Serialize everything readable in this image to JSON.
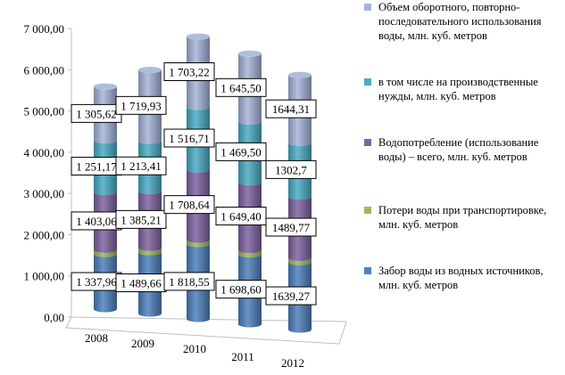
{
  "chart_data": {
    "type": "bar",
    "stacked": true,
    "shape": "3d-cylinder",
    "categories": [
      "2008",
      "2009",
      "2010",
      "2011",
      "2012"
    ],
    "series": [
      {
        "name": "Забор воды из водных источников, млн. куб. метров",
        "color": "#4f81bd",
        "values": [
          1337.96,
          1489.66,
          1818.55,
          1698.6,
          1639.27
        ],
        "labels": [
          "1 337,96",
          "1 489,66",
          "1 818,55",
          "1 698,60",
          "1639,27"
        ]
      },
      {
        "name": "Потери воды при транспортировке, млн. куб. метров",
        "color": "#9bbb59",
        "values": [
          100,
          100,
          100,
          100,
          100
        ],
        "labels": []
      },
      {
        "name": "Водопотребление (использование воды) – всего, млн. куб. метров",
        "color": "#8064a2",
        "values": [
          1403.06,
          1385.21,
          1708.64,
          1649.4,
          1489.77
        ],
        "labels": [
          "1 403,06",
          "1 385,21",
          "1 708,64",
          "1 649,40",
          "1489,77"
        ]
      },
      {
        "name": "в том числе на производственные нужды, млн. куб. метров",
        "color": "#4bacc6",
        "values": [
          1251.17,
          1213.41,
          1516.71,
          1469.5,
          1302.7
        ],
        "labels": [
          "1 251,17",
          "1 213,41",
          "1 516,71",
          "1 469,50",
          "1302,7"
        ]
      },
      {
        "name": "Объем оборотного, повторно-последовательного использования воды, млн. куб. метров",
        "color": "#a5b5d9",
        "values": [
          1305.62,
          1719.93,
          1703.22,
          1645.5,
          1644.31
        ],
        "labels": [
          "1 305,62",
          "1 719,93",
          "1 703,22",
          "1 645,50",
          "1644,31"
        ]
      }
    ],
    "yTicks": [
      "0,00",
      "1 000,00",
      "2 000,00",
      "3 000,00",
      "4 000,00",
      "5 000,00",
      "6 000,00",
      "7 000,00"
    ],
    "ylim": [
      0,
      7000
    ],
    "legend_position": "right",
    "grid": false
  }
}
